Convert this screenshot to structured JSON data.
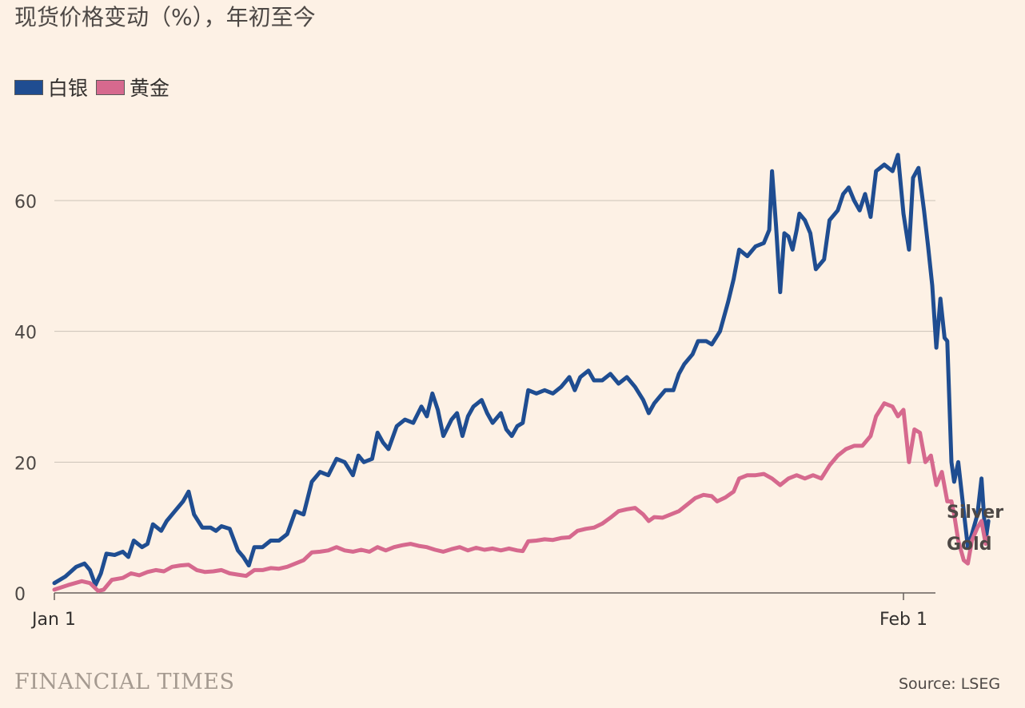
{
  "chart_data": {
    "type": "line",
    "title": "现货价格变动（%），年初至今",
    "xlabel": "",
    "ylabel": "",
    "ylim": [
      0,
      70
    ],
    "yticks": [
      0,
      20,
      40,
      60
    ],
    "x_tick_labels": [
      {
        "label": "Jan 1",
        "day": 0
      },
      {
        "label": "Feb 1",
        "day": 31
      }
    ],
    "x_range_days": [
      0,
      32.3
    ],
    "grid": true,
    "legend_position": "top-left",
    "legend": [
      {
        "label": "白银",
        "color": "#1f4d91"
      },
      {
        "label": "黄金",
        "color": "#d6698e"
      }
    ],
    "series": [
      {
        "name": "白银",
        "end_label": "Silver",
        "color": "#1f4d91",
        "points": [
          [
            0,
            1.5
          ],
          [
            0.4,
            2.5
          ],
          [
            0.8,
            4
          ],
          [
            1.1,
            4.5
          ],
          [
            1.3,
            3.5
          ],
          [
            1.5,
            1.2
          ],
          [
            1.7,
            3
          ],
          [
            1.9,
            6
          ],
          [
            2.2,
            5.8
          ],
          [
            2.5,
            6.3
          ],
          [
            2.7,
            5.5
          ],
          [
            2.9,
            8
          ],
          [
            3.2,
            7
          ],
          [
            3.4,
            7.5
          ],
          [
            3.6,
            10.5
          ],
          [
            3.9,
            9.5
          ],
          [
            4.1,
            11
          ],
          [
            4.4,
            12.5
          ],
          [
            4.7,
            14
          ],
          [
            4.9,
            15.5
          ],
          [
            5.1,
            12
          ],
          [
            5.4,
            10
          ],
          [
            5.7,
            10
          ],
          [
            5.9,
            9.5
          ],
          [
            6.1,
            10.2
          ],
          [
            6.4,
            9.8
          ],
          [
            6.7,
            6.5
          ],
          [
            6.9,
            5.5
          ],
          [
            7.1,
            4.2
          ],
          [
            7.3,
            7
          ],
          [
            7.6,
            7
          ],
          [
            7.9,
            8
          ],
          [
            8.2,
            8
          ],
          [
            8.5,
            9
          ],
          [
            8.8,
            12.5
          ],
          [
            9.1,
            12
          ],
          [
            9.4,
            17
          ],
          [
            9.7,
            18.5
          ],
          [
            10,
            18
          ],
          [
            10.3,
            20.5
          ],
          [
            10.6,
            20
          ],
          [
            10.9,
            18
          ],
          [
            11.1,
            21
          ],
          [
            11.3,
            20
          ],
          [
            11.6,
            20.5
          ],
          [
            11.8,
            24.5
          ],
          [
            12,
            23
          ],
          [
            12.2,
            22
          ],
          [
            12.5,
            25.5
          ],
          [
            12.8,
            26.5
          ],
          [
            13.1,
            26
          ],
          [
            13.4,
            28.5
          ],
          [
            13.6,
            27
          ],
          [
            13.8,
            30.5
          ],
          [
            14,
            28
          ],
          [
            14.2,
            24
          ],
          [
            14.5,
            26.5
          ],
          [
            14.7,
            27.5
          ],
          [
            14.9,
            24
          ],
          [
            15.1,
            27
          ],
          [
            15.3,
            28.5
          ],
          [
            15.6,
            29.5
          ],
          [
            15.8,
            27.5
          ],
          [
            16,
            26
          ],
          [
            16.3,
            27.5
          ],
          [
            16.5,
            25
          ],
          [
            16.7,
            24
          ],
          [
            16.9,
            25.5
          ],
          [
            17.1,
            26
          ],
          [
            17.3,
            31
          ],
          [
            17.6,
            30.5
          ],
          [
            17.9,
            31
          ],
          [
            18.2,
            30.5
          ],
          [
            18.5,
            31.5
          ],
          [
            18.8,
            33
          ],
          [
            19,
            31
          ],
          [
            19.2,
            33
          ],
          [
            19.5,
            34
          ],
          [
            19.7,
            32.5
          ],
          [
            20,
            32.5
          ],
          [
            20.3,
            33.5
          ],
          [
            20.6,
            32
          ],
          [
            20.9,
            33
          ],
          [
            21.2,
            31.5
          ],
          [
            21.5,
            29.5
          ],
          [
            21.7,
            27.5
          ],
          [
            21.9,
            29
          ],
          [
            22.1,
            30
          ],
          [
            22.3,
            31
          ],
          [
            22.6,
            31
          ],
          [
            22.8,
            33.5
          ],
          [
            23,
            35
          ],
          [
            23.3,
            36.5
          ],
          [
            23.5,
            38.5
          ],
          [
            23.8,
            38.5
          ],
          [
            24,
            38
          ],
          [
            24.3,
            40
          ],
          [
            24.6,
            44.5
          ],
          [
            24.8,
            48
          ],
          [
            25,
            52.5
          ],
          [
            25.3,
            51.5
          ],
          [
            25.6,
            53
          ],
          [
            25.9,
            53.5
          ],
          [
            26.1,
            55.5
          ],
          [
            26.2,
            64.5
          ],
          [
            26.35,
            56
          ],
          [
            26.5,
            46
          ],
          [
            26.65,
            55
          ],
          [
            26.8,
            54.5
          ],
          [
            26.95,
            52.5
          ],
          [
            27.1,
            55.5
          ],
          [
            27.2,
            58
          ],
          [
            27.4,
            57
          ],
          [
            27.6,
            55
          ],
          [
            27.8,
            49.5
          ],
          [
            28.1,
            51
          ],
          [
            28.3,
            57
          ],
          [
            28.6,
            58.5
          ],
          [
            28.8,
            61
          ],
          [
            29,
            62
          ],
          [
            29.2,
            60
          ],
          [
            29.4,
            58.5
          ],
          [
            29.6,
            61
          ],
          [
            29.8,
            57.5
          ],
          [
            30,
            64.5
          ],
          [
            30.3,
            65.5
          ],
          [
            30.6,
            64.5
          ],
          [
            30.8,
            67
          ],
          [
            31,
            58
          ],
          [
            31.2,
            52.5
          ],
          [
            31.35,
            63.5
          ],
          [
            31.55,
            65
          ],
          [
            31.75,
            58.5
          ],
          [
            31.9,
            53
          ],
          [
            32.05,
            47
          ],
          [
            32.2,
            37.5
          ],
          [
            32.35,
            45
          ],
          [
            32.5,
            39
          ],
          [
            32.6,
            38.5
          ],
          [
            32.75,
            20
          ],
          [
            32.85,
            17
          ],
          [
            33,
            20
          ],
          [
            33.2,
            12.5
          ],
          [
            33.35,
            7
          ],
          [
            33.5,
            9
          ],
          [
            33.7,
            12
          ],
          [
            33.85,
            17.5
          ],
          [
            34,
            8
          ],
          [
            34.1,
            11
          ]
        ]
      },
      {
        "name": "黄金",
        "end_label": "Gold",
        "color": "#d6698e",
        "points": [
          [
            0,
            0.5
          ],
          [
            0.5,
            1.2
          ],
          [
            1,
            1.8
          ],
          [
            1.3,
            1.5
          ],
          [
            1.6,
            0.3
          ],
          [
            1.8,
            0.5
          ],
          [
            2.1,
            2
          ],
          [
            2.5,
            2.3
          ],
          [
            2.8,
            3
          ],
          [
            3.1,
            2.7
          ],
          [
            3.4,
            3.2
          ],
          [
            3.7,
            3.5
          ],
          [
            4,
            3.3
          ],
          [
            4.3,
            4
          ],
          [
            4.6,
            4.2
          ],
          [
            4.9,
            4.3
          ],
          [
            5.2,
            3.5
          ],
          [
            5.5,
            3.2
          ],
          [
            5.8,
            3.3
          ],
          [
            6.1,
            3.5
          ],
          [
            6.4,
            3
          ],
          [
            6.7,
            2.8
          ],
          [
            7,
            2.6
          ],
          [
            7.3,
            3.5
          ],
          [
            7.6,
            3.5
          ],
          [
            7.9,
            3.8
          ],
          [
            8.2,
            3.7
          ],
          [
            8.5,
            4
          ],
          [
            8.8,
            4.5
          ],
          [
            9.1,
            5
          ],
          [
            9.4,
            6.2
          ],
          [
            9.7,
            6.3
          ],
          [
            10,
            6.5
          ],
          [
            10.3,
            7
          ],
          [
            10.6,
            6.5
          ],
          [
            10.9,
            6.3
          ],
          [
            11.2,
            6.6
          ],
          [
            11.5,
            6.3
          ],
          [
            11.8,
            7
          ],
          [
            12.1,
            6.5
          ],
          [
            12.4,
            7
          ],
          [
            12.7,
            7.3
          ],
          [
            13,
            7.5
          ],
          [
            13.3,
            7.2
          ],
          [
            13.6,
            7
          ],
          [
            13.9,
            6.6
          ],
          [
            14.2,
            6.3
          ],
          [
            14.5,
            6.7
          ],
          [
            14.8,
            7
          ],
          [
            15.1,
            6.5
          ],
          [
            15.4,
            6.9
          ],
          [
            15.7,
            6.6
          ],
          [
            16,
            6.8
          ],
          [
            16.3,
            6.5
          ],
          [
            16.6,
            6.8
          ],
          [
            16.9,
            6.5
          ],
          [
            17.1,
            6.4
          ],
          [
            17.3,
            7.9
          ],
          [
            17.6,
            8
          ],
          [
            17.9,
            8.2
          ],
          [
            18.2,
            8.1
          ],
          [
            18.5,
            8.4
          ],
          [
            18.8,
            8.5
          ],
          [
            19.1,
            9.5
          ],
          [
            19.4,
            9.8
          ],
          [
            19.7,
            10
          ],
          [
            20,
            10.6
          ],
          [
            20.3,
            11.5
          ],
          [
            20.6,
            12.5
          ],
          [
            20.9,
            12.8
          ],
          [
            21.2,
            13
          ],
          [
            21.5,
            12
          ],
          [
            21.7,
            11
          ],
          [
            21.9,
            11.6
          ],
          [
            22.2,
            11.5
          ],
          [
            22.5,
            12
          ],
          [
            22.8,
            12.5
          ],
          [
            23.1,
            13.5
          ],
          [
            23.4,
            14.5
          ],
          [
            23.7,
            15
          ],
          [
            24,
            14.8
          ],
          [
            24.2,
            14
          ],
          [
            24.5,
            14.6
          ],
          [
            24.8,
            15.5
          ],
          [
            25,
            17.5
          ],
          [
            25.3,
            18
          ],
          [
            25.6,
            18
          ],
          [
            25.9,
            18.2
          ],
          [
            26.2,
            17.5
          ],
          [
            26.5,
            16.5
          ],
          [
            26.8,
            17.5
          ],
          [
            27.1,
            18
          ],
          [
            27.4,
            17.5
          ],
          [
            27.7,
            18
          ],
          [
            28,
            17.5
          ],
          [
            28.3,
            19.5
          ],
          [
            28.6,
            21
          ],
          [
            28.9,
            22
          ],
          [
            29.2,
            22.5
          ],
          [
            29.5,
            22.5
          ],
          [
            29.8,
            24
          ],
          [
            30,
            27
          ],
          [
            30.3,
            29
          ],
          [
            30.6,
            28.5
          ],
          [
            30.8,
            27
          ],
          [
            31,
            28
          ],
          [
            31.2,
            20
          ],
          [
            31.4,
            25
          ],
          [
            31.6,
            24.5
          ],
          [
            31.8,
            20
          ],
          [
            32,
            21
          ],
          [
            32.2,
            16.5
          ],
          [
            32.4,
            18.5
          ],
          [
            32.6,
            14
          ],
          [
            32.75,
            14
          ],
          [
            32.85,
            12
          ],
          [
            33,
            8
          ],
          [
            33.2,
            5
          ],
          [
            33.35,
            4.5
          ],
          [
            33.5,
            8
          ],
          [
            33.7,
            10
          ],
          [
            33.85,
            11
          ],
          [
            34,
            7.5
          ],
          [
            34.1,
            8.5
          ]
        ]
      }
    ]
  },
  "footer": {
    "brand": "FINANCIAL TIMES",
    "source": "Source: LSEG"
  }
}
